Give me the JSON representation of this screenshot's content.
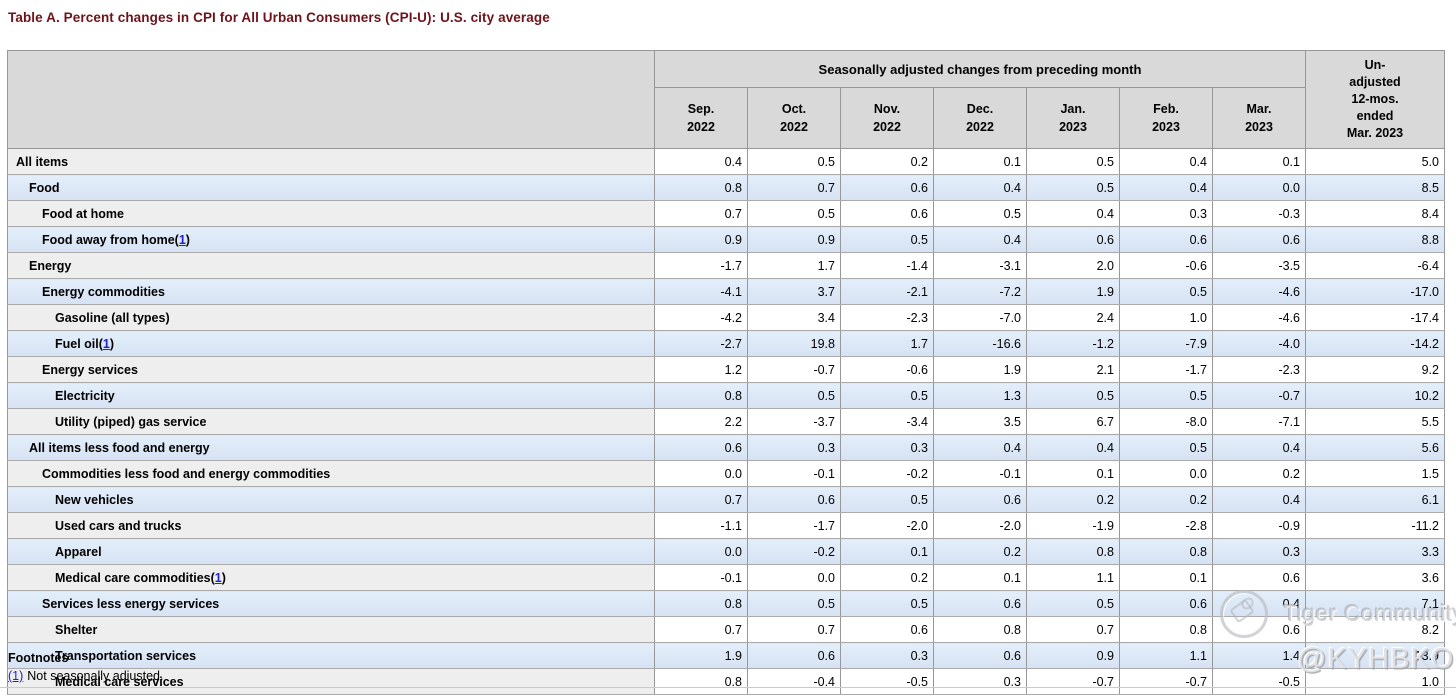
{
  "page": {
    "title": "Table A. Percent changes in CPI for All Urban Consumers (CPI-U): U.S. city average"
  },
  "table": {
    "header": {
      "group_label": "Seasonally adjusted changes from preceding month",
      "unadjusted_label": "Un-\nadjusted\n12-mos.\nended\nMar. 2023",
      "months": [
        "Sep.\n2022",
        "Oct.\n2022",
        "Nov.\n2022",
        "Dec.\n2022",
        "Jan.\n2023",
        "Feb.\n2023",
        "Mar.\n2023"
      ]
    },
    "rows": [
      {
        "label": "All items",
        "level": 0,
        "footnote_ref": null,
        "values": [
          "0.4",
          "0.5",
          "0.2",
          "0.1",
          "0.5",
          "0.4",
          "0.1",
          "5.0"
        ]
      },
      {
        "label": "Food",
        "level": 1,
        "footnote_ref": null,
        "values": [
          "0.8",
          "0.7",
          "0.6",
          "0.4",
          "0.5",
          "0.4",
          "0.0",
          "8.5"
        ]
      },
      {
        "label": "Food at home",
        "level": 2,
        "footnote_ref": null,
        "values": [
          "0.7",
          "0.5",
          "0.6",
          "0.5",
          "0.4",
          "0.3",
          "-0.3",
          "8.4"
        ]
      },
      {
        "label": "Food away from home",
        "level": 2,
        "footnote_ref": "1",
        "values": [
          "0.9",
          "0.9",
          "0.5",
          "0.4",
          "0.6",
          "0.6",
          "0.6",
          "8.8"
        ]
      },
      {
        "label": "Energy",
        "level": 1,
        "footnote_ref": null,
        "values": [
          "-1.7",
          "1.7",
          "-1.4",
          "-3.1",
          "2.0",
          "-0.6",
          "-3.5",
          "-6.4"
        ]
      },
      {
        "label": "Energy commodities",
        "level": 2,
        "footnote_ref": null,
        "values": [
          "-4.1",
          "3.7",
          "-2.1",
          "-7.2",
          "1.9",
          "0.5",
          "-4.6",
          "-17.0"
        ]
      },
      {
        "label": "Gasoline (all types)",
        "level": 3,
        "footnote_ref": null,
        "values": [
          "-4.2",
          "3.4",
          "-2.3",
          "-7.0",
          "2.4",
          "1.0",
          "-4.6",
          "-17.4"
        ]
      },
      {
        "label": "Fuel oil",
        "level": 3,
        "footnote_ref": "1",
        "values": [
          "-2.7",
          "19.8",
          "1.7",
          "-16.6",
          "-1.2",
          "-7.9",
          "-4.0",
          "-14.2"
        ]
      },
      {
        "label": "Energy services",
        "level": 2,
        "footnote_ref": null,
        "values": [
          "1.2",
          "-0.7",
          "-0.6",
          "1.9",
          "2.1",
          "-1.7",
          "-2.3",
          "9.2"
        ]
      },
      {
        "label": "Electricity",
        "level": 3,
        "footnote_ref": null,
        "values": [
          "0.8",
          "0.5",
          "0.5",
          "1.3",
          "0.5",
          "0.5",
          "-0.7",
          "10.2"
        ]
      },
      {
        "label": "Utility (piped) gas service",
        "level": 3,
        "footnote_ref": null,
        "values": [
          "2.2",
          "-3.7",
          "-3.4",
          "3.5",
          "6.7",
          "-8.0",
          "-7.1",
          "5.5"
        ]
      },
      {
        "label": "All items less food and energy",
        "level": 1,
        "footnote_ref": null,
        "values": [
          "0.6",
          "0.3",
          "0.3",
          "0.4",
          "0.4",
          "0.5",
          "0.4",
          "5.6"
        ]
      },
      {
        "label": "Commodities less food and energy commodities",
        "level": 2,
        "footnote_ref": null,
        "values": [
          "0.0",
          "-0.1",
          "-0.2",
          "-0.1",
          "0.1",
          "0.0",
          "0.2",
          "1.5"
        ]
      },
      {
        "label": "New vehicles",
        "level": 3,
        "footnote_ref": null,
        "values": [
          "0.7",
          "0.6",
          "0.5",
          "0.6",
          "0.2",
          "0.2",
          "0.4",
          "6.1"
        ]
      },
      {
        "label": "Used cars and trucks",
        "level": 3,
        "footnote_ref": null,
        "values": [
          "-1.1",
          "-1.7",
          "-2.0",
          "-2.0",
          "-1.9",
          "-2.8",
          "-0.9",
          "-11.2"
        ]
      },
      {
        "label": "Apparel",
        "level": 3,
        "footnote_ref": null,
        "values": [
          "0.0",
          "-0.2",
          "0.1",
          "0.2",
          "0.8",
          "0.8",
          "0.3",
          "3.3"
        ]
      },
      {
        "label": "Medical care commodities",
        "level": 3,
        "footnote_ref": "1",
        "values": [
          "-0.1",
          "0.0",
          "0.2",
          "0.1",
          "1.1",
          "0.1",
          "0.6",
          "3.6"
        ]
      },
      {
        "label": "Services less energy services",
        "level": 2,
        "footnote_ref": null,
        "values": [
          "0.8",
          "0.5",
          "0.5",
          "0.6",
          "0.5",
          "0.6",
          "0.4",
          "7.1"
        ]
      },
      {
        "label": "Shelter",
        "level": 3,
        "footnote_ref": null,
        "values": [
          "0.7",
          "0.7",
          "0.6",
          "0.8",
          "0.7",
          "0.8",
          "0.6",
          "8.2"
        ]
      },
      {
        "label": "Transportation services",
        "level": 3,
        "footnote_ref": null,
        "values": [
          "1.9",
          "0.6",
          "0.3",
          "0.6",
          "0.9",
          "1.1",
          "1.4",
          "13.9"
        ]
      },
      {
        "label": "Medical care services",
        "level": 3,
        "footnote_ref": null,
        "values": [
          "0.8",
          "-0.4",
          "-0.5",
          "0.3",
          "-0.7",
          "-0.7",
          "-0.5",
          "1.0"
        ]
      }
    ]
  },
  "footnotes": {
    "heading": "Footnotes",
    "items": [
      {
        "ref": "(1)",
        "text": "Not seasonally adjusted."
      }
    ]
  },
  "watermark": {
    "community": "Tiger Community",
    "user": "@KYHBKO"
  },
  "colors": {
    "title": "#6e1319",
    "header_bg": "#d9d9d9",
    "stub_gray": "#eeeeee",
    "row_blue": "#dbe6f5",
    "link_blue": "#2222cc",
    "border": "#989898"
  },
  "chart_data": {
    "type": "table",
    "title": "Table A. Percent changes in CPI for All Urban Consumers (CPI-U): U.S. city average",
    "column_group": "Seasonally adjusted changes from preceding month",
    "columns": [
      "Sep. 2022",
      "Oct. 2022",
      "Nov. 2022",
      "Dec. 2022",
      "Jan. 2023",
      "Feb. 2023",
      "Mar. 2023",
      "Unadjusted 12-mos. ended Mar. 2023"
    ],
    "rows": [
      {
        "label": "All items",
        "values": [
          0.4,
          0.5,
          0.2,
          0.1,
          0.5,
          0.4,
          0.1,
          5.0
        ]
      },
      {
        "label": "Food",
        "values": [
          0.8,
          0.7,
          0.6,
          0.4,
          0.5,
          0.4,
          0.0,
          8.5
        ]
      },
      {
        "label": "Food at home",
        "values": [
          0.7,
          0.5,
          0.6,
          0.5,
          0.4,
          0.3,
          -0.3,
          8.4
        ]
      },
      {
        "label": "Food away from home(1)",
        "values": [
          0.9,
          0.9,
          0.5,
          0.4,
          0.6,
          0.6,
          0.6,
          8.8
        ]
      },
      {
        "label": "Energy",
        "values": [
          -1.7,
          1.7,
          -1.4,
          -3.1,
          2.0,
          -0.6,
          -3.5,
          -6.4
        ]
      },
      {
        "label": "Energy commodities",
        "values": [
          -4.1,
          3.7,
          -2.1,
          -7.2,
          1.9,
          0.5,
          -4.6,
          -17.0
        ]
      },
      {
        "label": "Gasoline (all types)",
        "values": [
          -4.2,
          3.4,
          -2.3,
          -7.0,
          2.4,
          1.0,
          -4.6,
          -17.4
        ]
      },
      {
        "label": "Fuel oil(1)",
        "values": [
          -2.7,
          19.8,
          1.7,
          -16.6,
          -1.2,
          -7.9,
          -4.0,
          -14.2
        ]
      },
      {
        "label": "Energy services",
        "values": [
          1.2,
          -0.7,
          -0.6,
          1.9,
          2.1,
          -1.7,
          -2.3,
          9.2
        ]
      },
      {
        "label": "Electricity",
        "values": [
          0.8,
          0.5,
          0.5,
          1.3,
          0.5,
          0.5,
          -0.7,
          10.2
        ]
      },
      {
        "label": "Utility (piped) gas service",
        "values": [
          2.2,
          -3.7,
          -3.4,
          3.5,
          6.7,
          -8.0,
          -7.1,
          5.5
        ]
      },
      {
        "label": "All items less food and energy",
        "values": [
          0.6,
          0.3,
          0.3,
          0.4,
          0.4,
          0.5,
          0.4,
          5.6
        ]
      },
      {
        "label": "Commodities less food and energy commodities",
        "values": [
          0.0,
          -0.1,
          -0.2,
          -0.1,
          0.1,
          0.0,
          0.2,
          1.5
        ]
      },
      {
        "label": "New vehicles",
        "values": [
          0.7,
          0.6,
          0.5,
          0.6,
          0.2,
          0.2,
          0.4,
          6.1
        ]
      },
      {
        "label": "Used cars and trucks",
        "values": [
          -1.1,
          -1.7,
          -2.0,
          -2.0,
          -1.9,
          -2.8,
          -0.9,
          -11.2
        ]
      },
      {
        "label": "Apparel",
        "values": [
          0.0,
          -0.2,
          0.1,
          0.2,
          0.8,
          0.8,
          0.3,
          3.3
        ]
      },
      {
        "label": "Medical care commodities(1)",
        "values": [
          -0.1,
          0.0,
          0.2,
          0.1,
          1.1,
          0.1,
          0.6,
          3.6
        ]
      },
      {
        "label": "Services less energy services",
        "values": [
          0.8,
          0.5,
          0.5,
          0.6,
          0.5,
          0.6,
          0.4,
          7.1
        ]
      },
      {
        "label": "Shelter",
        "values": [
          0.7,
          0.7,
          0.6,
          0.8,
          0.7,
          0.8,
          0.6,
          8.2
        ]
      },
      {
        "label": "Transportation services",
        "values": [
          1.9,
          0.6,
          0.3,
          0.6,
          0.9,
          1.1,
          1.4,
          13.9
        ]
      },
      {
        "label": "Medical care services",
        "values": [
          0.8,
          -0.4,
          -0.5,
          0.3,
          -0.7,
          -0.7,
          -0.5,
          1.0
        ]
      }
    ],
    "footnote": "(1) Not seasonally adjusted."
  }
}
